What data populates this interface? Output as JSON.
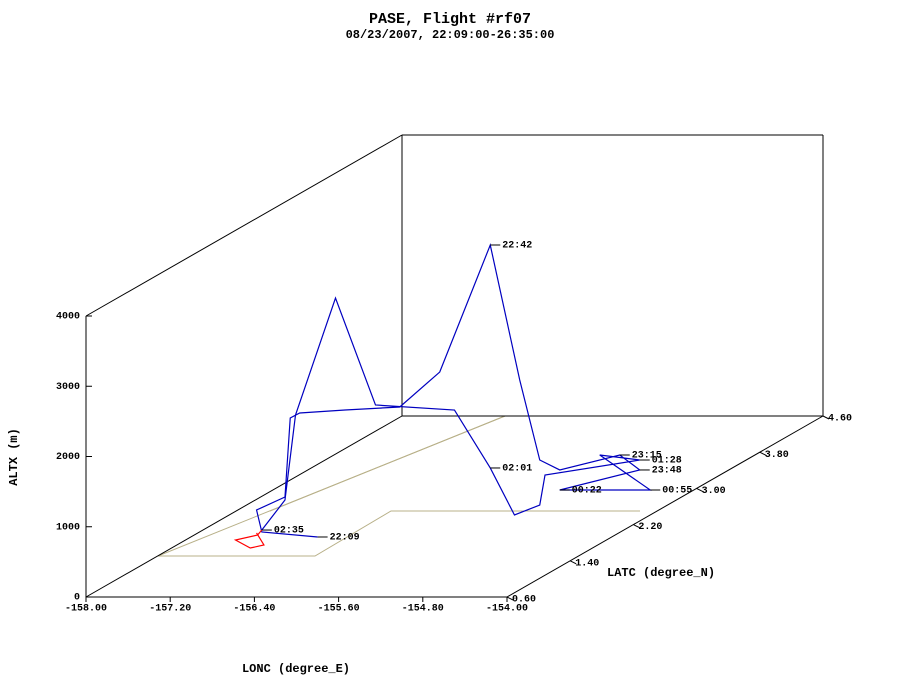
{
  "chart_data": {
    "type": "track3d",
    "title": "PASE, Flight #rf07",
    "subtitle": "08/23/2007, 22:09:00-26:35:00",
    "xlabel": "LONC (degree_E)",
    "ylabel": "LATC (degree_N)",
    "zlabel": "ALTX (m)",
    "xlim": [
      -158,
      -154
    ],
    "ylim": [
      0.6,
      4.6
    ],
    "zlim": [
      0,
      4000
    ],
    "xticks": [
      {
        "value": -158,
        "label": "-158.00"
      },
      {
        "value": -157.2,
        "label": "-157.20"
      },
      {
        "value": -156.4,
        "label": "-156.40"
      },
      {
        "value": -155.6,
        "label": "-155.60"
      },
      {
        "value": -154.8,
        "label": "-154.80"
      },
      {
        "value": -154,
        "label": "-154.00"
      }
    ],
    "yticks": [
      {
        "value": 0.6,
        "label": "0.60"
      },
      {
        "value": 1.4,
        "label": "1.40"
      },
      {
        "value": 2.2,
        "label": "2.20"
      },
      {
        "value": 3,
        "label": "3.00"
      },
      {
        "value": 3.8,
        "label": "3.80"
      },
      {
        "value": 4.6,
        "label": "4.60"
      }
    ],
    "zticks": [
      0,
      1000,
      2000,
      3000,
      4000
    ],
    "series": [
      {
        "color": "#0000c0",
        "x": [
          -156.4,
          -156.93,
          -156.98,
          -156.71,
          -156.66,
          -156.57,
          -156.74,
          -156.22,
          -155.84,
          -155.36,
          -155.08,
          -155.19,
          -155.0,
          -154.43,
          -154.24,
          -155.0,
          -154.14,
          -154.62,
          -154.24,
          -155.14,
          -155.19,
          -155.13,
          -155.36,
          -155.7,
          -155.85,
          -156.23,
          -156.61,
          -156.71,
          -156.93
        ],
        "y": [
          1.4,
          1.4,
          1.4,
          1.4,
          1.4,
          1.4,
          2.2,
          2.2,
          2.2,
          2.2,
          2.2,
          2.6,
          2.6,
          2.6,
          2.6,
          2.6,
          2.6,
          2.6,
          2.6,
          2.6,
          2.6,
          2.2,
          2.2,
          2.2,
          1.4,
          1.4,
          1.4,
          1.4,
          1.4
        ],
        "z": [
          339,
          410,
          723,
          908,
          2033,
          2104,
          1631,
          1674,
          2172,
          3980,
          2058,
          662,
          520,
          733,
          520,
          235,
          235,
          733,
          662,
          448,
          21,
          137,
          806,
          1631,
          2218,
          3741,
          2075,
          865,
          438
        ],
        "labels": [
          "22:09",
          null,
          null,
          null,
          null,
          null,
          null,
          null,
          null,
          "22:42",
          null,
          null,
          null,
          "23:15",
          "23:48",
          "00:22",
          "00:55",
          null,
          "01:28",
          null,
          null,
          null,
          "02:01",
          null,
          null,
          null,
          null,
          null,
          "02:35"
        ]
      },
      {
        "color": "#ff0000",
        "x": [
          -156.93,
          -156.97,
          -157.18,
          -157.04,
          -156.91,
          -156.98
        ],
        "y": [
          1.4,
          1.4,
          1.4,
          1.4,
          1.4,
          1.4
        ],
        "z": [
          438,
          367,
          296,
          182,
          225,
          396
        ]
      }
    ]
  }
}
